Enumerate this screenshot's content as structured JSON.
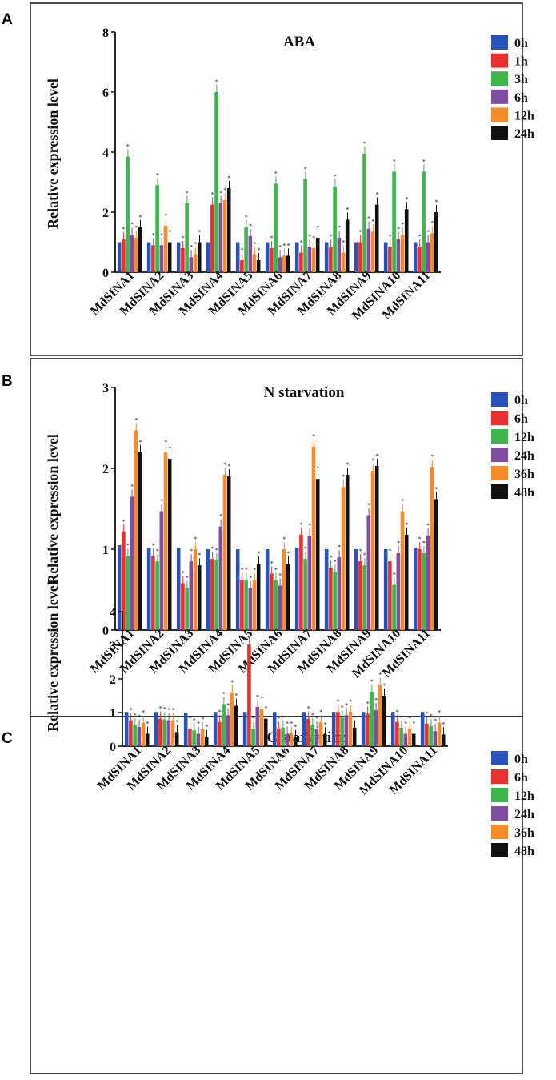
{
  "panel_labels": [
    "A",
    "B",
    "C"
  ],
  "chart_data": [
    {
      "type": "bar",
      "title": "ABA",
      "ylabel": "Relative expression level",
      "xlabel": "",
      "ylim": [
        0,
        8
      ],
      "yticks": [
        "0",
        "2",
        "4",
        "6",
        "8"
      ],
      "categories": [
        "MdSINA1",
        "MdSINA2",
        "MdSINA3",
        "MdSINA4",
        "MdSINA5",
        "MdSINA6",
        "MdSINA7",
        "MdSINA8",
        "MdSINA9",
        "MdSINA10",
        "MdSINA11"
      ],
      "legend": [
        "0h",
        "1h",
        "3h",
        "6h",
        "12h",
        "24h"
      ],
      "series": [
        {
          "name": "0h",
          "color": "#2a53b9",
          "values": [
            1.0,
            1.0,
            1.0,
            1.0,
            1.0,
            1.0,
            1.0,
            1.0,
            1.0,
            1.0,
            1.0
          ]
        },
        {
          "name": "1h",
          "color": "#e8302e",
          "values": [
            1.1,
            0.9,
            0.8,
            2.25,
            0.4,
            0.8,
            0.65,
            0.85,
            1.0,
            0.85,
            0.85
          ]
        },
        {
          "name": "3h",
          "color": "#3db54a",
          "values": [
            3.85,
            2.9,
            2.3,
            6.0,
            1.5,
            2.95,
            3.1,
            2.85,
            3.95,
            3.35,
            3.35
          ]
        },
        {
          "name": "6h",
          "color": "#7f4ea3",
          "values": [
            1.25,
            0.9,
            0.5,
            2.3,
            1.2,
            0.5,
            0.85,
            1.15,
            1.45,
            1.1,
            1.0
          ]
        },
        {
          "name": "12h",
          "color": "#f58b2b",
          "values": [
            1.15,
            1.55,
            0.6,
            2.4,
            0.6,
            0.55,
            0.8,
            0.65,
            1.35,
            1.25,
            1.3
          ]
        },
        {
          "name": "24h",
          "color": "#111111",
          "values": [
            1.5,
            1.0,
            1.0,
            2.8,
            0.4,
            0.55,
            1.15,
            1.75,
            2.25,
            2.1,
            2.0
          ]
        }
      ]
    },
    {
      "type": "bar",
      "title": "N starvation",
      "ylabel": "Relative expression level",
      "xlabel": "",
      "ylim": [
        0,
        3
      ],
      "yticks": [
        "0",
        "1",
        "2",
        "3"
      ],
      "categories": [
        "MdSINA1",
        "MdSINA2",
        "MdSINA3",
        "MdSINA4",
        "MdSINA5",
        "MdSINA6",
        "MdSINA7",
        "MdSINA8",
        "MdSINA9",
        "MdSINA10",
        "MdSINA11"
      ],
      "legend": [
        "0h",
        "6h",
        "12h",
        "24h",
        "36h",
        "48h"
      ],
      "series": [
        {
          "name": "0h",
          "color": "#2a53b9",
          "values": [
            1.05,
            1.02,
            1.02,
            1.0,
            1.0,
            1.0,
            1.02,
            1.0,
            1.0,
            1.0,
            1.02
          ]
        },
        {
          "name": "6h",
          "color": "#e8302e",
          "values": [
            1.22,
            0.92,
            0.58,
            0.88,
            0.62,
            0.7,
            1.18,
            0.77,
            0.85,
            0.85,
            1.0
          ]
        },
        {
          "name": "12h",
          "color": "#3db54a",
          "values": [
            0.92,
            0.85,
            0.52,
            0.86,
            0.62,
            0.62,
            0.88,
            0.72,
            0.8,
            0.56,
            0.95
          ]
        },
        {
          "name": "24h",
          "color": "#7f4ea3",
          "values": [
            1.65,
            1.47,
            0.85,
            1.28,
            0.52,
            0.55,
            1.17,
            0.9,
            1.42,
            0.95,
            1.17
          ]
        },
        {
          "name": "36h",
          "color": "#f58b2b",
          "values": [
            2.47,
            2.2,
            1.0,
            1.92,
            0.62,
            1.0,
            2.27,
            1.77,
            1.97,
            1.47,
            2.02
          ]
        },
        {
          "name": "48h",
          "color": "#111111",
          "values": [
            2.2,
            2.12,
            0.8,
            1.9,
            0.82,
            0.82,
            1.87,
            1.92,
            2.03,
            1.18,
            1.62
          ]
        }
      ]
    },
    {
      "type": "bar",
      "title": "C starvation",
      "ylabel": "Relative expression level",
      "xlabel": "",
      "ylim": [
        0,
        4
      ],
      "yticks": [
        "0",
        "1",
        "2",
        "3",
        "4"
      ],
      "categories": [
        "MdSINA1",
        "MdSINA2",
        "MdSINA3",
        "MdSINA4",
        "MdSINA5",
        "MdSINA6",
        "MdSINA7",
        "MdSINA8",
        "MdSINA9",
        "MdSINA10",
        "MdSINA11"
      ],
      "legend": [
        "0h",
        "6h",
        "12h",
        "24h",
        "36h",
        "48h"
      ],
      "series": [
        {
          "name": "0h",
          "color": "#2a53b9",
          "values": [
            1.02,
            1.02,
            1.0,
            1.02,
            1.02,
            1.02,
            1.02,
            1.02,
            1.02,
            1.02,
            1.02
          ]
        },
        {
          "name": "6h",
          "color": "#e8302e",
          "values": [
            0.77,
            0.82,
            0.52,
            0.72,
            3.02,
            0.52,
            0.82,
            1.02,
            0.97,
            0.72,
            0.67
          ]
        },
        {
          "name": "12h",
          "color": "#3db54a",
          "values": [
            0.62,
            0.8,
            0.47,
            1.25,
            0.52,
            0.55,
            0.62,
            0.85,
            1.62,
            0.55,
            0.6
          ]
        },
        {
          "name": "24h",
          "color": "#7f4ea3",
          "values": [
            0.57,
            0.77,
            0.37,
            0.92,
            1.17,
            0.37,
            0.52,
            0.92,
            1.07,
            0.37,
            0.45
          ]
        },
        {
          "name": "36h",
          "color": "#f58b2b",
          "values": [
            0.7,
            0.77,
            0.5,
            1.6,
            1.12,
            0.37,
            0.72,
            1.02,
            1.82,
            0.52,
            0.7
          ]
        },
        {
          "name": "48h",
          "color": "#111111",
          "values": [
            0.37,
            0.42,
            0.27,
            1.2,
            0.82,
            0.27,
            0.35,
            0.55,
            1.5,
            0.37,
            0.35
          ]
        }
      ]
    }
  ]
}
